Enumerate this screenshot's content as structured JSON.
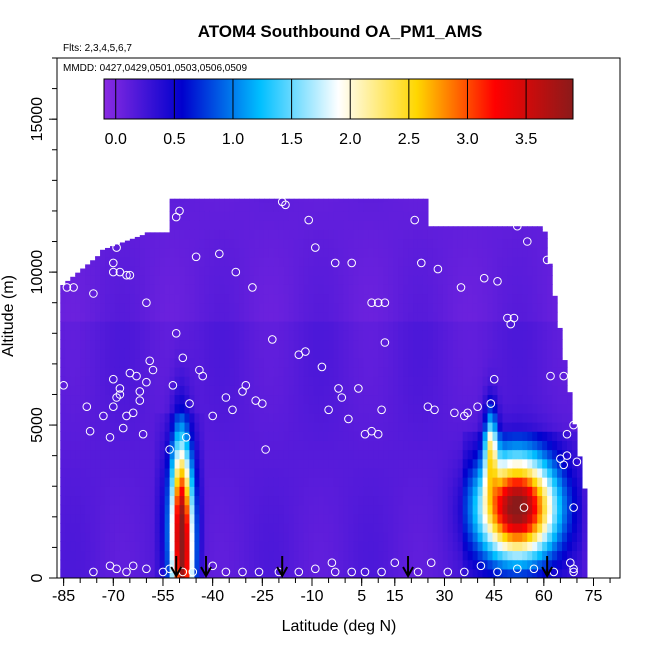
{
  "chart_data": {
    "type": "heatmap",
    "title": "ATOM4 Southbound OA_PM1_AMS",
    "subtitle_flights": "Flts: 2,3,4,5,6,7",
    "subtitle_dates": "MMDD: 0427,0429,0501,0503,0506,0509",
    "xlabel": "Latitude (deg N)",
    "ylabel": "Altitude (m)",
    "xlim": [
      -87,
      83
    ],
    "ylim": [
      0,
      17000
    ],
    "x_ticks": [
      -85,
      -70,
      -55,
      -40,
      -25,
      -10,
      5,
      15,
      30,
      45,
      60,
      75
    ],
    "y_ticks": [
      0,
      5000,
      10000,
      15000
    ],
    "colorbar": {
      "ticks": [
        0.0,
        0.5,
        1.0,
        1.5,
        2.0,
        2.5,
        3.0,
        3.5
      ],
      "tick_labels": [
        "0.0",
        "0.5",
        "1.0",
        "1.5",
        "2.0",
        "2.5",
        "3.0",
        "3.5"
      ],
      "range": [
        -0.1,
        3.9
      ],
      "colors": [
        "#8a2be2",
        "#0000cd",
        "#00bfff",
        "#ffffff",
        "#ffd700",
        "#ff0000",
        "#8b1a1a"
      ]
    },
    "field_blobs": [
      {
        "name": "southern-plume",
        "lat": -49,
        "alt": 600,
        "lat_sigma": 2.2,
        "alt_sigma": 2200,
        "peak": 3.0
      },
      {
        "name": "southern-plume-tail",
        "lat": -50,
        "alt": 2600,
        "lat_sigma": 1.8,
        "alt_sigma": 1800,
        "peak": 0.9
      },
      {
        "name": "northern-plume",
        "lat": 52,
        "alt": 2300,
        "lat_sigma": 7.5,
        "alt_sigma": 1100,
        "peak": 3.3
      },
      {
        "name": "northern-plume-column",
        "lat": 44,
        "alt": 4300,
        "lat_sigma": 1.4,
        "alt_sigma": 900,
        "peak": 1.6
      }
    ],
    "flight_arrows_lat": [
      -51,
      -42,
      -19,
      19,
      61
    ],
    "observations": [
      [
        -85,
        6300
      ],
      [
        -84,
        9500
      ],
      [
        -82,
        9500
      ],
      [
        -78,
        5600
      ],
      [
        -77,
        4800
      ],
      [
        -76,
        9300
      ],
      [
        -73,
        5300
      ],
      [
        -71,
        4600
      ],
      [
        -70,
        5600
      ],
      [
        -70,
        6500
      ],
      [
        -69,
        5900
      ],
      [
        -68,
        6200
      ],
      [
        -68,
        6000
      ],
      [
        -67,
        4900
      ],
      [
        -66,
        5300
      ],
      [
        -65,
        6700
      ],
      [
        -64,
        5400
      ],
      [
        -63,
        6600
      ],
      [
        -62,
        6100
      ],
      [
        -62,
        5800
      ],
      [
        -61,
        4700
      ],
      [
        -60,
        6400
      ],
      [
        -59,
        7100
      ],
      [
        -58,
        6800
      ],
      [
        -70,
        10300
      ],
      [
        -70,
        10000
      ],
      [
        -69,
        10800
      ],
      [
        -68,
        10000
      ],
      [
        -66,
        9900
      ],
      [
        -65,
        9900
      ],
      [
        -64,
        11400
      ],
      [
        -60,
        9000
      ],
      [
        -59,
        11800
      ],
      [
        -53,
        4200
      ],
      [
        -52,
        6300
      ],
      [
        -51,
        8000
      ],
      [
        -51,
        11800
      ],
      [
        -50,
        12000
      ],
      [
        -49,
        7200
      ],
      [
        -48,
        4600
      ],
      [
        -47,
        5700
      ],
      [
        -45,
        10500
      ],
      [
        -44,
        6800
      ],
      [
        -43,
        6600
      ],
      [
        -40,
        5300
      ],
      [
        -38,
        10600
      ],
      [
        -36,
        5900
      ],
      [
        -34,
        5500
      ],
      [
        -33,
        10000
      ],
      [
        -31,
        6100
      ],
      [
        -30,
        6300
      ],
      [
        -28,
        9500
      ],
      [
        -27,
        5800
      ],
      [
        -25,
        5700
      ],
      [
        -24,
        4200
      ],
      [
        -22,
        7800
      ],
      [
        -19,
        12300
      ],
      [
        -18,
        12200
      ],
      [
        -14,
        7300
      ],
      [
        -12,
        7400
      ],
      [
        -11,
        11700
      ],
      [
        -9,
        10800
      ],
      [
        -7,
        6900
      ],
      [
        -5,
        5500
      ],
      [
        -3,
        10300
      ],
      [
        -2,
        6200
      ],
      [
        -1,
        5900
      ],
      [
        1,
        5200
      ],
      [
        2,
        10300
      ],
      [
        4,
        6200
      ],
      [
        6,
        4700
      ],
      [
        8,
        9000
      ],
      [
        10,
        9000
      ],
      [
        12,
        9000
      ],
      [
        12,
        7700
      ],
      [
        10,
        4700
      ],
      [
        11,
        5500
      ],
      [
        8,
        4800
      ],
      [
        21,
        11700
      ],
      [
        23,
        10300
      ],
      [
        25,
        5600
      ],
      [
        27,
        5500
      ],
      [
        28,
        10100
      ],
      [
        33,
        5400
      ],
      [
        35,
        9500
      ],
      [
        36,
        5300
      ],
      [
        37,
        5400
      ],
      [
        40,
        5600
      ],
      [
        42,
        9800
      ],
      [
        44,
        5700
      ],
      [
        45,
        6500
      ],
      [
        46,
        9700
      ],
      [
        49,
        8500
      ],
      [
        50,
        8300
      ],
      [
        51,
        8500
      ],
      [
        52,
        11500
      ],
      [
        55,
        11000
      ],
      [
        61,
        10400
      ],
      [
        62,
        6600
      ],
      [
        65,
        3900
      ],
      [
        67,
        4700
      ],
      [
        67,
        4000
      ],
      [
        66,
        3700
      ],
      [
        66,
        6600
      ],
      [
        69,
        300
      ],
      [
        69,
        5000
      ],
      [
        69,
        2300
      ],
      [
        70,
        3800
      ],
      [
        -76,
        200
      ],
      [
        -71,
        400
      ],
      [
        -69,
        300
      ],
      [
        -66,
        200
      ],
      [
        -64,
        400
      ],
      [
        -60,
        300
      ],
      [
        -55,
        200
      ],
      [
        -53,
        300
      ],
      [
        -49,
        200
      ],
      [
        -46,
        200
      ],
      [
        -40,
        400
      ],
      [
        -36,
        200
      ],
      [
        -31,
        200
      ],
      [
        -26,
        200
      ],
      [
        -20,
        200
      ],
      [
        -14,
        200
      ],
      [
        -9,
        300
      ],
      [
        -4,
        500
      ],
      [
        -3,
        200
      ],
      [
        2,
        200
      ],
      [
        6,
        200
      ],
      [
        11,
        200
      ],
      [
        15,
        500
      ],
      [
        22,
        200
      ],
      [
        26,
        500
      ],
      [
        31,
        200
      ],
      [
        36,
        200
      ],
      [
        41,
        400
      ],
      [
        46,
        200
      ],
      [
        52,
        300
      ],
      [
        57,
        300
      ],
      [
        63,
        200
      ],
      [
        68,
        500
      ],
      [
        69,
        200
      ],
      [
        54,
        2300
      ]
    ]
  }
}
